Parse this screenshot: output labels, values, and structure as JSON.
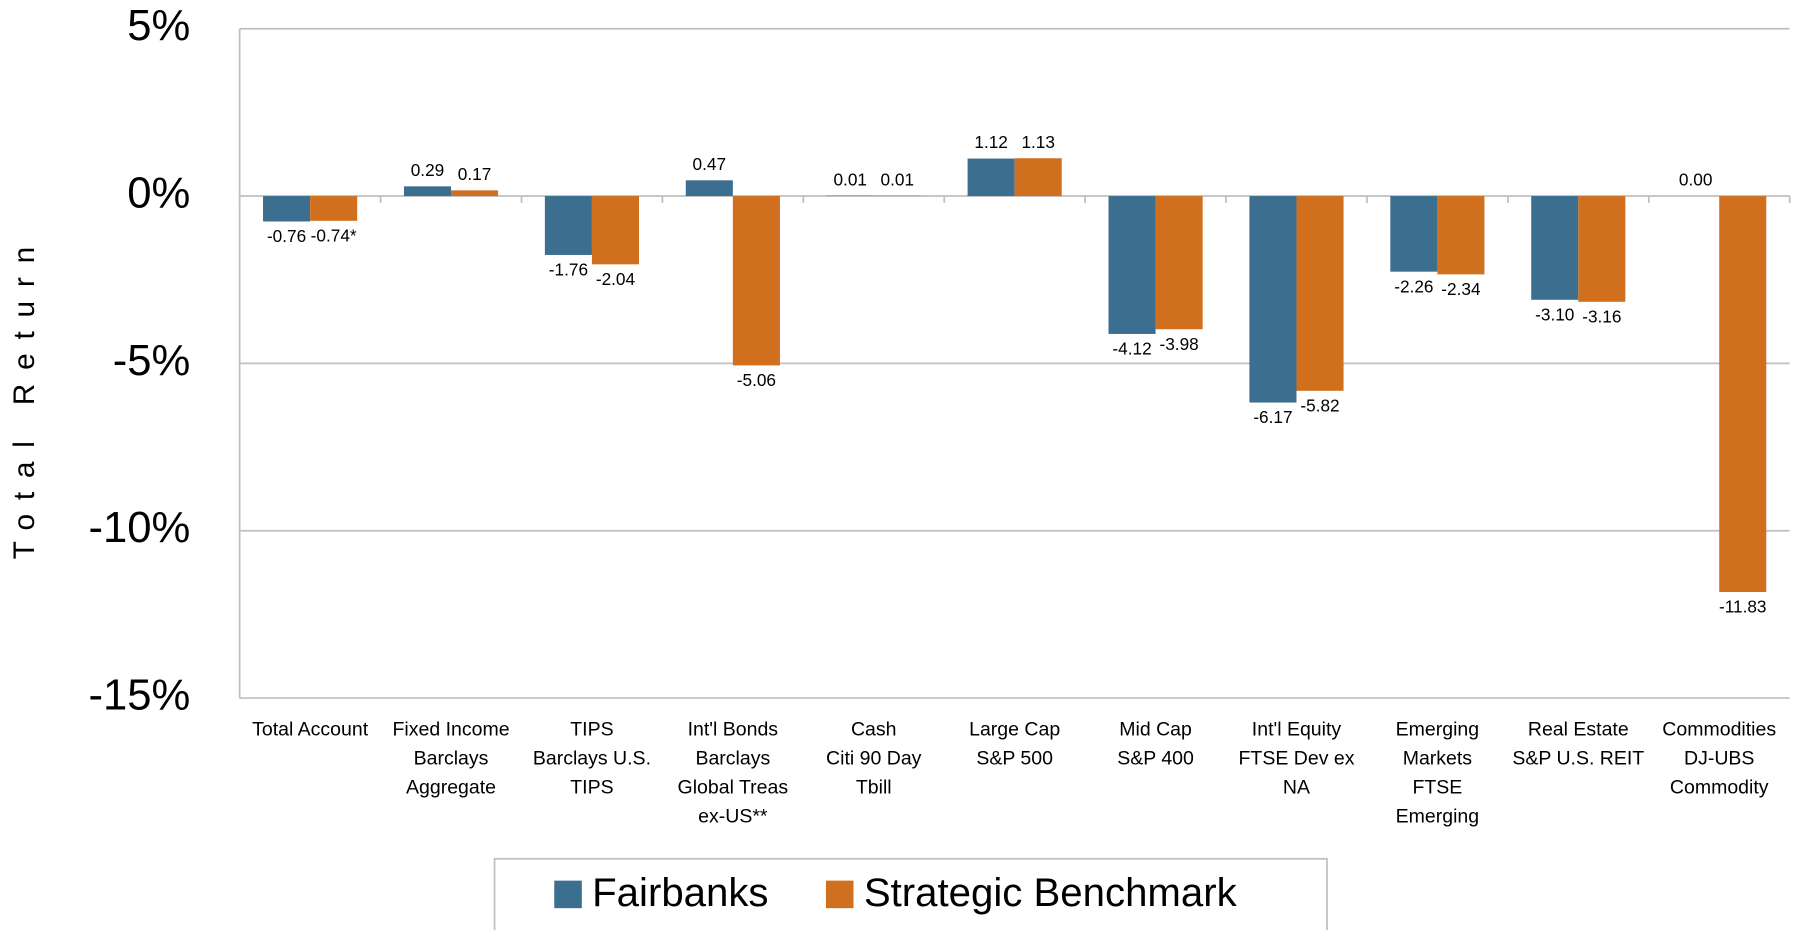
{
  "chart_data": {
    "type": "bar",
    "y_label": "Total Return",
    "categories": [
      [
        "Total Account"
      ],
      [
        "Fixed Income",
        "Barclays",
        "Aggregate"
      ],
      [
        "TIPS",
        "Barclays U.S.",
        "TIPS"
      ],
      [
        "Int'l Bonds",
        "Barclays",
        "Global Treas",
        "ex-US**"
      ],
      [
        "Cash",
        "Citi 90 Day",
        "Tbill"
      ],
      [
        "Large Cap",
        "S&P 500"
      ],
      [
        "Mid Cap",
        "S&P 400"
      ],
      [
        "Int'l Equity",
        "FTSE Dev ex",
        "NA"
      ],
      [
        "Emerging",
        "Markets",
        "FTSE",
        "Emerging"
      ],
      [
        "Real Estate",
        "S&P U.S. REIT"
      ],
      [
        "Commodities",
        "DJ-UBS",
        "Commodity"
      ]
    ],
    "series": [
      {
        "name": "Fairbanks",
        "color": "#3c6e8f",
        "values": [
          -0.76,
          0.29,
          -1.76,
          0.47,
          0.01,
          1.12,
          -4.12,
          -6.17,
          -2.26,
          -3.1,
          0.0
        ],
        "value_labels": [
          "-0.76",
          "0.29",
          "-1.76",
          "0.47",
          "0.01",
          "1.12",
          "-4.12",
          "-6.17",
          "-2.26",
          "-3.10",
          "0.00"
        ]
      },
      {
        "name": "Strategic Benchmark",
        "color": "#d0701f",
        "values": [
          -0.74,
          0.17,
          -2.04,
          -5.06,
          0.01,
          1.13,
          -3.98,
          -5.82,
          -2.34,
          -3.16,
          -11.83
        ],
        "value_labels": [
          "-0.74*",
          "0.17",
          "-2.04",
          "-5.06",
          "0.01",
          "1.13",
          "-3.98",
          "-5.82",
          "-2.34",
          "-3.16",
          "-11.83"
        ]
      }
    ],
    "ylim": [
      -15,
      5
    ],
    "yticks": [
      {
        "value": -15,
        "label": "-15%"
      },
      {
        "value": -10,
        "label": "-10%"
      },
      {
        "value": -5,
        "label": "-5%"
      },
      {
        "value": 0,
        "label": "0%"
      },
      {
        "value": 5,
        "label": "5%"
      }
    ],
    "grid": true,
    "legend": "bottom"
  }
}
